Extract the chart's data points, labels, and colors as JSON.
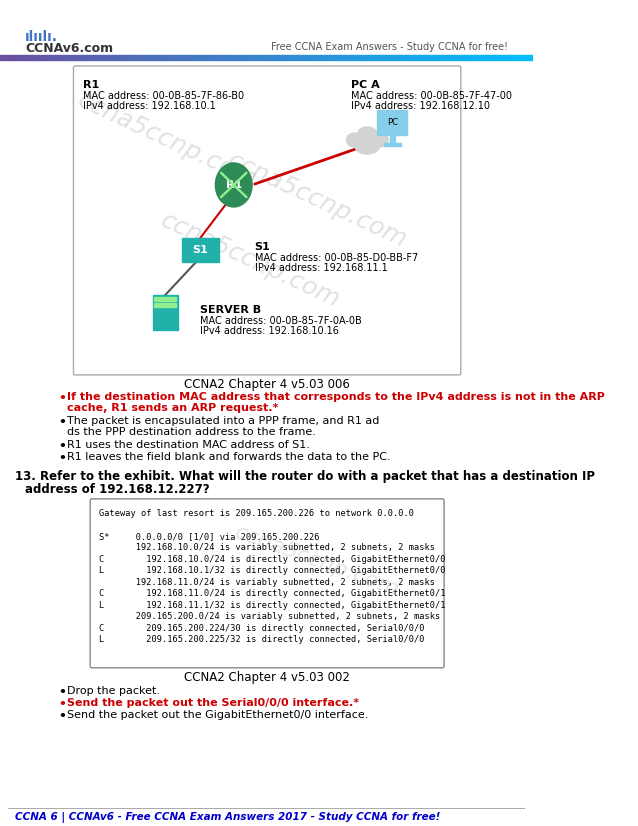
{
  "header_logo_text": "CCNAv6.com",
  "header_right_text": "Free CCNA Exam Answers - Study CCNA for free!",
  "header_bar_left_color": "#6B4FA0",
  "header_bar_right_color": "#00BFFF",
  "network_diagram_caption": "CCNA2 Chapter 4 v5.03 006",
  "pc_a_label": "PC A",
  "pc_a_mac": "MAC address: 00-0B-85-7F-47-00",
  "pc_a_ipv4": "IPv4 address: 192.168.12.10",
  "r1_label": "R1",
  "r1_mac": "MAC address: 00-0B-85-7F-86-B0",
  "r1_ipv4": "IPv4 address: 192.168.10.1",
  "s1_label": "S1",
  "s1_mac": "MAC address: 00-0B-85-D0-BB-F7",
  "s1_ipv4": "IPv4 address: 192.168.11.1",
  "server_b_label": "SERVER B",
  "server_b_mac": "MAC address: 00-0B-85-7F-0A-0B",
  "server_b_ipv4": "IPv4 address: 192.168.10.16",
  "q12_bullet1_red": "If the destination MAC address that corresponds to the IPv4 address is not in the ARP cache, R1 sends an ARP request.*",
  "q12_bullet2": "The packet is encapsulated into a PPP frame, and R1 adds the PPP destination address to the frame.",
  "q12_bullet3": "R1 uses the destination MAC address of S1.",
  "q12_bullet4": "R1 leaves the field blank and forwards the data to the PC.",
  "q13_text": "13. Refer to the exhibit. What will the router do with a packet that has a destination IP\n    address of 192.168.12.227?",
  "routing_table": [
    "Gateway of last resort is 209.165.200.226 to network 0.0.0.0",
    "",
    "S*     0.0.0.0/0 [1/0] via 209.165.200.226",
    "       192.168.10.0/24 is variably subnetted, 2 subnets, 2 masks",
    "C        192.168.10.0/24 is directly connected, GigabitEthernet0/0",
    "L        192.168.10.1/32 is directly connected, GigabitEthernet0/0",
    "       192.168.11.0/24 is variably subnetted, 2 subnets, 2 masks",
    "C        192.168.11.0/24 is directly connected, GigabitEthernet0/1",
    "L        192.168.11.1/32 is directly connected, GigabitEthernet0/1",
    "       209.165.200.0/24 is variably subnetted, 2 subnets, 2 masks",
    "C        209.165.200.224/30 is directly connected, Serial0/0/0",
    "L        209.165.200.225/32 is directly connected, Serial0/0/0"
  ],
  "routing_table_caption": "CCNA2 Chapter 4 v5.03 002",
  "q13_bullet1": "Drop the packet.",
  "q13_bullet2_red": "Send the packet out the Serial0/0/0 interface.*",
  "q13_bullet3": "Send the packet out the GigabitEthernet0/0 interface.",
  "footer_text": "CCNA 6 | CCNAv6 - Free CCNA Exam Answers 2017 - Study CCNA for free!",
  "footer_color": "#0000CC",
  "bg_color": "#FFFFFF",
  "box_bg": "#F8F8F8",
  "box_border": "#AAAAAA",
  "text_color": "#000000",
  "red_color": "#CC0000"
}
